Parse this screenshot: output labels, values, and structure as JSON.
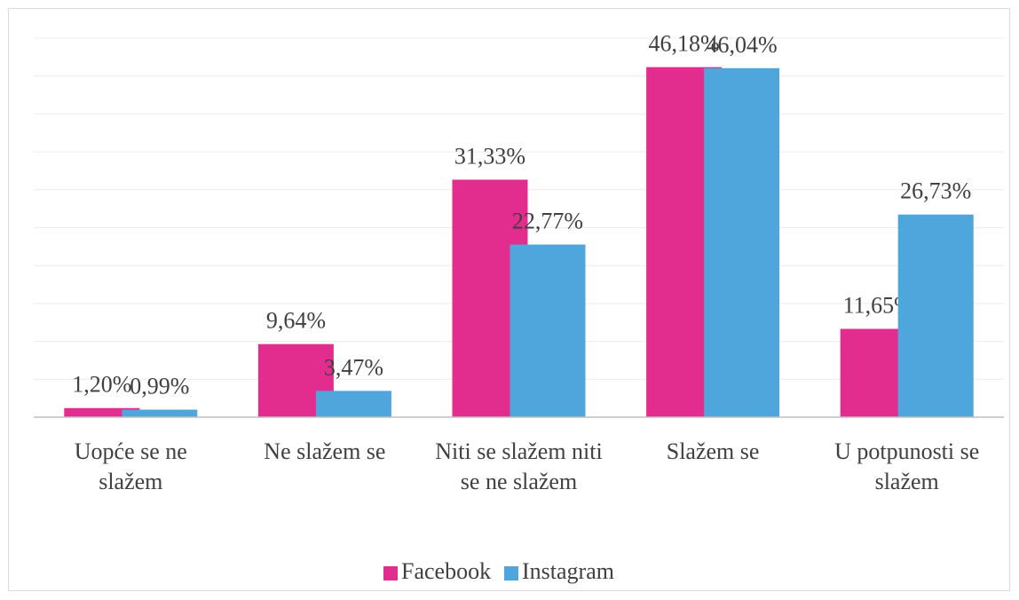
{
  "chart_data": {
    "type": "bar",
    "categories": [
      "Uopće se ne slažem",
      "Ne slažem se",
      "Niti se slažem niti se ne slažem",
      "Slažem se",
      "U potpunosti se slažem"
    ],
    "series": [
      {
        "name": "Facebook",
        "color": "#e22d8f",
        "values": [
          1.2,
          9.64,
          31.33,
          46.18,
          11.65
        ],
        "value_labels": [
          "1,20%",
          "9,64%",
          "31,33%",
          "46,18%",
          "11,65%"
        ]
      },
      {
        "name": "Instagram",
        "color": "#4ea6dc",
        "values": [
          0.99,
          3.47,
          22.77,
          46.04,
          26.73
        ],
        "value_labels": [
          "0,99%",
          "3,47%",
          "22,77%",
          "46,04%",
          "26,73%"
        ]
      }
    ],
    "ylim": [
      0,
      50
    ],
    "yticks": [
      0,
      5,
      10,
      15,
      20,
      25,
      30,
      35,
      40,
      45,
      50
    ],
    "grid": true,
    "legend": "bottom"
  }
}
